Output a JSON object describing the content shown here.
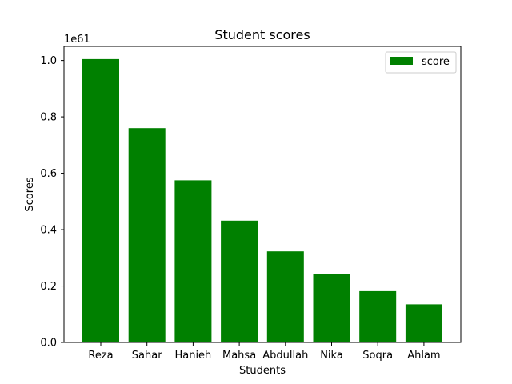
{
  "chart_data": {
    "type": "bar",
    "title": "Student scores",
    "xlabel": "Students",
    "ylabel": "Scores",
    "y_multiplier_label": "1e61",
    "categories": [
      "Reza",
      "Sahar",
      "Hanieh",
      "Mahsa",
      "Abdullah",
      "Nika",
      "Soqra",
      "Ahlam"
    ],
    "series": [
      {
        "name": "score",
        "color": "#008000",
        "values": [
          1.005,
          0.76,
          0.575,
          0.432,
          0.323,
          0.244,
          0.182,
          0.135
        ]
      }
    ],
    "ylim": [
      0,
      1.05
    ],
    "yticks": [
      0.0,
      0.2,
      0.4,
      0.6,
      0.8,
      1.0
    ],
    "ytick_labels": [
      "0.0",
      "0.2",
      "0.4",
      "0.6",
      "0.8",
      "1.0"
    ],
    "grid": false,
    "legend_position": "top-right"
  }
}
